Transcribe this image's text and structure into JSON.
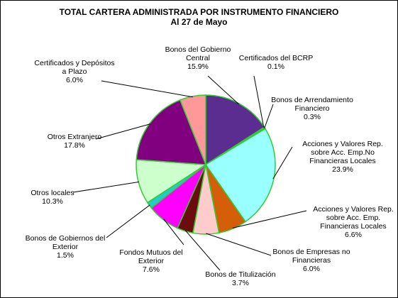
{
  "chart_data": {
    "type": "pie",
    "title": "TOTAL CARTERA ADMINISTRADA POR INSTRUMENTO FINANCIERO",
    "subtitle": "Al 27 de Mayo",
    "slices": [
      {
        "label": [
          "Bonos del Gobierno",
          "Central"
        ],
        "value": 15.9,
        "display": "15.9%",
        "color": "#5b2d91"
      },
      {
        "label": [
          "Certificados del BCRP"
        ],
        "value": 0.1,
        "display": "0.1%",
        "color": "#3a8a3a"
      },
      {
        "label": [
          "Bonos de Arrendamiento",
          "Financiero"
        ],
        "value": 0.3,
        "display": "0.3%",
        "color": "#4a7a4a"
      },
      {
        "label": [
          "Acciones y Valores Rep.",
          "sobre Acc. Emp.No",
          "Financieras Locales"
        ],
        "value": 23.9,
        "display": "23.9%",
        "color": "#99ffff"
      },
      {
        "label": [
          "Acciones y Valores Rep.",
          "sobre Acc. Emp.",
          "Financieras Locales"
        ],
        "value": 6.6,
        "display": "6.6%",
        "color": "#d45f08"
      },
      {
        "label": [
          "Bonos de Empresas no",
          "Financieras"
        ],
        "value": 6.0,
        "display": "6.0%",
        "color": "#ffcccc"
      },
      {
        "label": [
          "Bonos de Titulización"
        ],
        "value": 3.7,
        "display": "3.7%",
        "color": "#6b0d0d"
      },
      {
        "label": [
          "Fondos Mutuos del",
          "Exterior"
        ],
        "value": 7.6,
        "display": "7.6%",
        "color": "#ff00ff"
      },
      {
        "label": [
          "Bonos de Gobiernos del",
          "Exterior"
        ],
        "value": 1.5,
        "display": "1.5%",
        "color": "#22cccc"
      },
      {
        "label": [
          "Otros locales"
        ],
        "value": 10.3,
        "display": "10.3%",
        "color": "#ccffcc"
      },
      {
        "label": [
          "Otros Extranjero"
        ],
        "value": 17.8,
        "display": "17.8%",
        "color": "#800080"
      },
      {
        "label": [
          "Certificados y Depósitos",
          "a Plazo"
        ],
        "value": 6.0,
        "display": "6.0%",
        "color": "#ff9999"
      }
    ],
    "slice_border_color": "#33cc33"
  }
}
